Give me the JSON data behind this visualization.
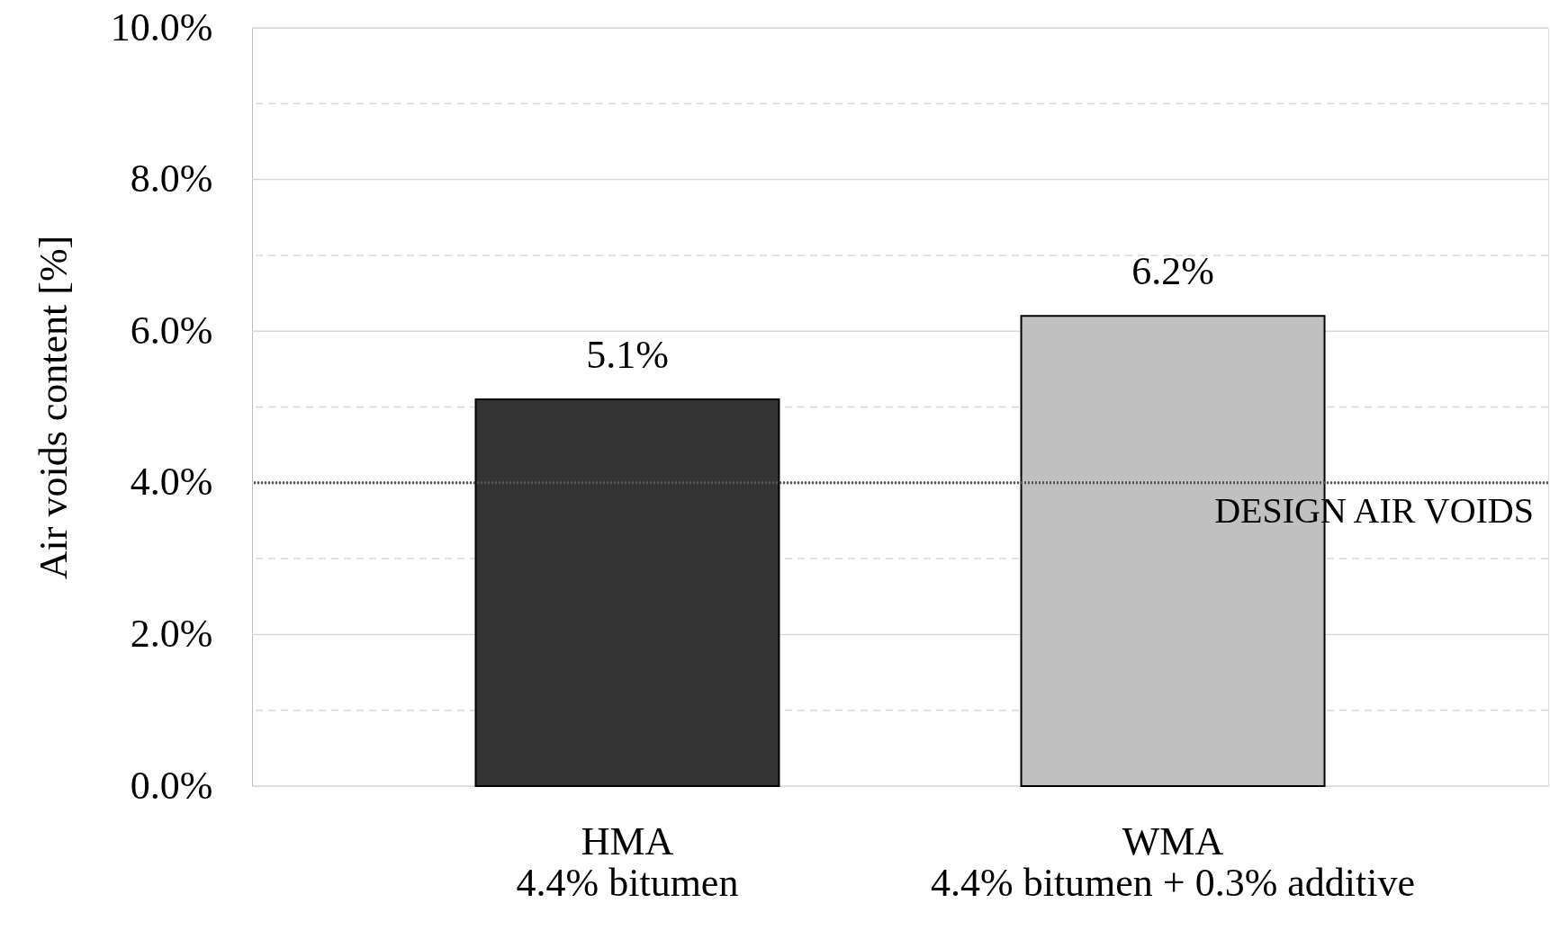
{
  "chart_data": {
    "type": "bar",
    "categories": [
      "HMA\n4.4% bitumen",
      "WMA\n4.4% bitumen + 0.3% additive"
    ],
    "values": [
      5.1,
      6.2
    ],
    "colors": [
      "#333333",
      "#c0c0c0"
    ],
    "value_labels": [
      "5.1%",
      "6.2%"
    ],
    "ylabel": "Air voids content [%]",
    "ylim": [
      0,
      10
    ],
    "yticks": [
      {
        "value": 0,
        "label": "0.0%"
      },
      {
        "value": 1,
        "label": null
      },
      {
        "value": 2,
        "label": "2.0%"
      },
      {
        "value": 3,
        "label": null
      },
      {
        "value": 4,
        "label": "4.0%"
      },
      {
        "value": 5,
        "label": null
      },
      {
        "value": 6,
        "label": "6.0%"
      },
      {
        "value": 7,
        "label": null
      },
      {
        "value": 8,
        "label": "8.0%"
      },
      {
        "value": 9,
        "label": null
      },
      {
        "value": 10,
        "label": "10.0%"
      }
    ],
    "grid": "y",
    "ref_lines": [
      {
        "axis": "y",
        "value": 4,
        "label": "DESIGN AIR VOIDS",
        "line_style": "dotted",
        "color": "#555555"
      }
    ]
  }
}
